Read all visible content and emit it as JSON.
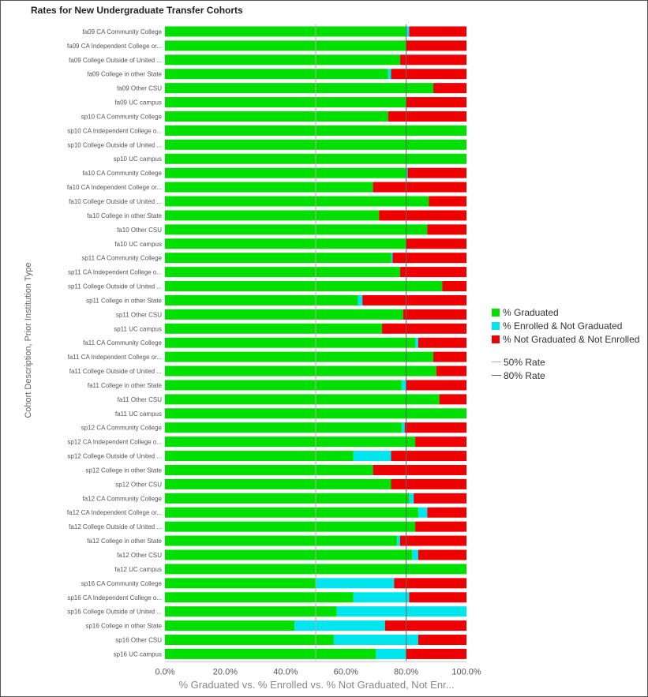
{
  "chart_data": {
    "type": "bar",
    "orientation": "horizontal",
    "stacked": true,
    "title": "Rates for New Undergraduate Transfer Cohorts",
    "ylabel": "Cohort Description, Prior Institution Type",
    "xlabel": "% Graduated vs. % Enrolled vs. % Not Graduated, Not Enr...",
    "xlim": [
      0,
      100
    ],
    "xticks": [
      0,
      20,
      40,
      60,
      80,
      100
    ],
    "xtick_labels": [
      "0.0%",
      "20.0%",
      "40.0%",
      "60.0%",
      "80.0%",
      "100.0%"
    ],
    "categories": [
      "fa09 CA Community College",
      "fa09 CA Independent College or...",
      "fa09 College Outside of United ...",
      "fa09 College in other State",
      "fa09 Other CSU",
      "fa09 UC campus",
      "sp10 CA Community College",
      "sp10 CA Independent College o...",
      "sp10 College Outside of United ...",
      "sp10 UC campus",
      "fa10 CA Community College",
      "fa10 CA Independent College or...",
      "fa10 College Outside of United ...",
      "fa10 College in other State",
      "fa10 Other CSU",
      "fa10 UC campus",
      "sp11 CA Community College",
      "sp11 CA Independent College o...",
      "sp11 College Outside of United ...",
      "sp11 College in other State",
      "sp11 Other CSU",
      "sp11 UC campus",
      "fa11 CA Community College",
      "fa11 CA Independent College or...",
      "fa11 College Outside of United ...",
      "fa11 College in other State",
      "fa11 Other CSU",
      "fa11 UC campus",
      "sp12 CA Community College",
      "sp12 CA Independent College o...",
      "sp12 College Outside of United ...",
      "sp12 College in other State",
      "sp12 Other CSU",
      "fa12 CA Community College",
      "fa12 CA Independent College or...",
      "fa12 College Outside of United ...",
      "fa12 College in other State",
      "fa12 Other CSU",
      "fa12 UC campus",
      "sp16 CA Community College",
      "sp16 CA Independent College o...",
      "sp16 College Outside of United ...",
      "sp16 College in other State",
      "sp16 Other CSU",
      "sp16 UC campus"
    ],
    "series": [
      {
        "name": "% Graduated",
        "color": "#00e000",
        "values": [
          80,
          80,
          78,
          74,
          89,
          80,
          74,
          100,
          100,
          100,
          80,
          69,
          87.5,
          71,
          87,
          80,
          75,
          78,
          92,
          64,
          79,
          72,
          83,
          89,
          90,
          78.5,
          91,
          100,
          78.5,
          83,
          62.5,
          69,
          75,
          81,
          84,
          83,
          77,
          82,
          100,
          50,
          62.5,
          57,
          43,
          56,
          70
        ]
      },
      {
        "name": "% Enrolled & Not Graduated",
        "color": "#00e5ee",
        "values": [
          1,
          0,
          0,
          1,
          0,
          0,
          0,
          0,
          0,
          0,
          0.5,
          0,
          0,
          0,
          0,
          0,
          0.5,
          0,
          0,
          1.5,
          0,
          0,
          1,
          0,
          0,
          1.5,
          0,
          0,
          1,
          0,
          12.5,
          0,
          0,
          1.5,
          3,
          0,
          1,
          2,
          0,
          26,
          18.5,
          43,
          30,
          28,
          10
        ]
      },
      {
        "name": "% Not Graduated & Not Enrolled",
        "color": "#ee0000",
        "values": [
          19,
          20,
          22,
          25,
          11,
          20,
          26,
          0,
          0,
          0,
          19.5,
          31,
          12.5,
          29,
          13,
          20,
          24.5,
          22,
          8,
          34.5,
          21,
          28,
          16,
          11,
          10,
          20,
          9,
          0,
          20.5,
          17,
          25,
          31,
          25,
          17.5,
          13,
          17,
          22,
          16,
          0,
          24,
          19,
          0,
          27,
          16,
          20
        ]
      }
    ],
    "reference_lines": [
      {
        "name": "50% Rate",
        "value": 50,
        "color": "#c8a0a8"
      },
      {
        "name": "80% Rate",
        "value": 80,
        "color": "#666666"
      }
    ],
    "legend_position": "right"
  }
}
